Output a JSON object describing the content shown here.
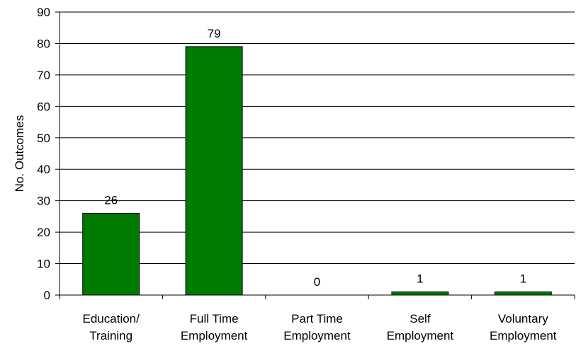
{
  "chart_data": {
    "type": "bar",
    "categories": [
      [
        "Education/",
        "Training"
      ],
      [
        "Full Time",
        "Employment"
      ],
      [
        "Part Time",
        "Employment"
      ],
      [
        "Self",
        "Employment"
      ],
      [
        "Voluntary",
        "Employment"
      ]
    ],
    "values": [
      26,
      79,
      0,
      1,
      1
    ],
    "data_labels": [
      "26",
      "79",
      "0",
      "1",
      "1"
    ],
    "title": "",
    "xlabel": "",
    "ylabel": "No. Outcomes",
    "ylim": [
      0,
      90
    ],
    "yticks": [
      0,
      10,
      20,
      30,
      40,
      50,
      60,
      70,
      80,
      90
    ],
    "grid": true,
    "legend": "none",
    "colors": {
      "bar_fill": "#007A00",
      "bar_stroke": "#000000",
      "gridline": "#000000",
      "axis": "#000000"
    }
  }
}
